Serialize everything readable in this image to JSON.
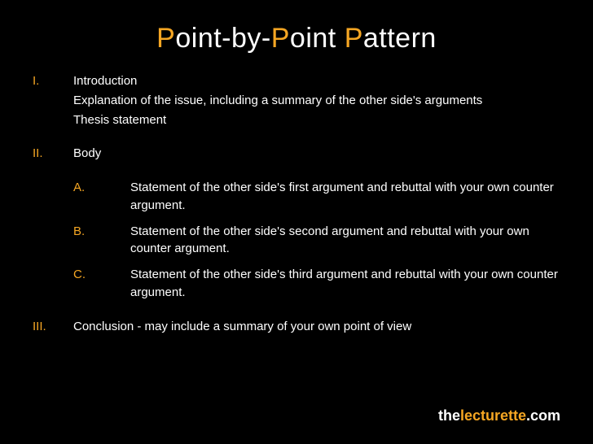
{
  "colors": {
    "background": "#000000",
    "text": "#ffffff",
    "accent": "#f5a623"
  },
  "title": {
    "p1a": "P",
    "p1b": "oint-by-",
    "p2a": "P",
    "p2b": "oint ",
    "p3a": "P",
    "p3b": "attern"
  },
  "outline": {
    "i": {
      "numeral": "I.",
      "label": "Introduction",
      "line2": "Explanation of the issue, including a summary of the other side's arguments",
      "line3": "Thesis statement"
    },
    "ii": {
      "numeral": "II.",
      "label": "Body",
      "a": {
        "letter": "A.",
        "text": "Statement of the other side's first argument and rebuttal with your own counter argument."
      },
      "b": {
        "letter": "B.",
        "text": "Statement of the other side's second argument and rebuttal with your own  counter argument."
      },
      "c": {
        "letter": "C.",
        "text": "Statement of the other side's third argument and rebuttal with your own counter argument."
      }
    },
    "iii": {
      "numeral": "III.",
      "label": "Conclusion - may include a summary of your own point of view"
    }
  },
  "footer": {
    "part1": "the",
    "part2": "lecturette",
    "part3": ".com"
  }
}
